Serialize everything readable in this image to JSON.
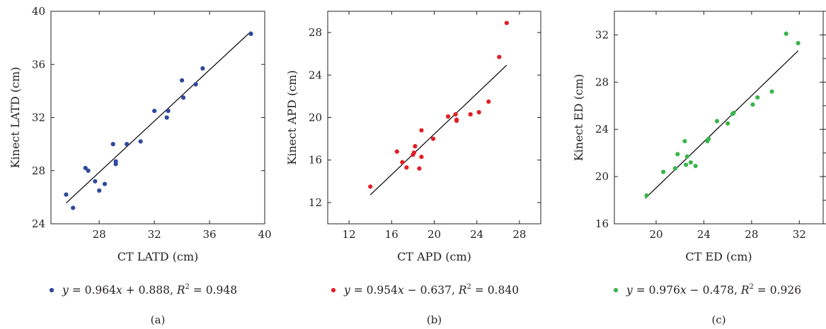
{
  "chart_data": [
    {
      "type": "scatter",
      "panel_label": "(a)",
      "xlabel": "CT LATD (cm)",
      "ylabel": "Kinect LATD (cm)",
      "xlim": [
        24.5,
        40
      ],
      "ylim": [
        24,
        40
      ],
      "xticks": [
        28,
        32,
        36,
        40
      ],
      "yticks": [
        24,
        28,
        32,
        36,
        40
      ],
      "right_ticks": false,
      "color": "#2e4a9b",
      "fit": {
        "slope": 0.964,
        "intercept": 0.888,
        "x_range": [
          25.6,
          39.0
        ]
      },
      "legend": {
        "eq_y": "y",
        "eq_mid": " = 0.964",
        "eq_x": "x",
        "eq_rest": " + 0.888, ",
        "r": "R",
        "sup": "2",
        "eq_end": " = 0.948"
      },
      "points": [
        [
          25.6,
          26.2
        ],
        [
          26.1,
          25.2
        ],
        [
          27.0,
          28.2
        ],
        [
          27.2,
          28.0
        ],
        [
          27.7,
          27.2
        ],
        [
          28.0,
          26.5
        ],
        [
          28.4,
          27.0
        ],
        [
          29.0,
          30.0
        ],
        [
          29.2,
          28.7
        ],
        [
          29.2,
          28.5
        ],
        [
          30.0,
          30.0
        ],
        [
          31.0,
          30.2
        ],
        [
          32.0,
          32.5
        ],
        [
          32.9,
          32.0
        ],
        [
          33.0,
          32.5
        ],
        [
          34.0,
          34.8
        ],
        [
          34.1,
          33.5
        ],
        [
          35.0,
          34.5
        ],
        [
          35.5,
          35.7
        ],
        [
          39.0,
          38.3
        ]
      ]
    },
    {
      "type": "scatter",
      "panel_label": "(b)",
      "xlabel": "CT APD (cm)",
      "ylabel": "Kinect APD (cm)",
      "xlim": [
        10,
        30
      ],
      "ylim": [
        10,
        30
      ],
      "xticks": [
        12,
        16,
        20,
        24,
        28
      ],
      "yticks": [
        12,
        16,
        20,
        24,
        28
      ],
      "right_ticks": false,
      "color": "#e31e24",
      "fit": {
        "slope": 0.954,
        "intercept": -0.637,
        "x_range": [
          14.0,
          26.8
        ]
      },
      "legend": {
        "eq_y": "y",
        "eq_mid": " = 0.954",
        "eq_x": "x",
        "eq_rest": " − 0.637, ",
        "r": "R",
        "sup": "2",
        "eq_end": " = 0.840"
      },
      "points": [
        [
          14.0,
          13.5
        ],
        [
          16.5,
          16.8
        ],
        [
          17.0,
          15.8
        ],
        [
          17.4,
          15.3
        ],
        [
          18.0,
          16.5
        ],
        [
          18.1,
          16.7
        ],
        [
          18.2,
          17.3
        ],
        [
          18.6,
          15.2
        ],
        [
          18.8,
          16.3
        ],
        [
          18.8,
          18.8
        ],
        [
          19.9,
          18.0
        ],
        [
          21.3,
          20.1
        ],
        [
          22.0,
          20.3
        ],
        [
          22.1,
          19.8
        ],
        [
          22.1,
          19.7
        ],
        [
          23.4,
          20.3
        ],
        [
          24.2,
          20.5
        ],
        [
          25.1,
          21.5
        ],
        [
          26.1,
          25.7
        ],
        [
          26.8,
          28.9
        ]
      ]
    },
    {
      "type": "scatter",
      "panel_label": "(c)",
      "xlabel": "CT ED (cm)",
      "ylabel": "Kinect ED (cm)",
      "xlim": [
        16.5,
        34
      ],
      "ylim": [
        16,
        34
      ],
      "xticks": [
        20,
        24,
        28,
        32
      ],
      "yticks": [
        16,
        20,
        24,
        28,
        32
      ],
      "right_ticks": true,
      "color": "#3ab54a",
      "fit": {
        "slope": 0.976,
        "intercept": -0.478,
        "x_range": [
          19.1,
          31.9
        ]
      },
      "legend": {
        "eq_y": "y",
        "eq_mid": " = 0.976",
        "eq_x": "x",
        "eq_rest": " − 0.478, ",
        "r": "R",
        "sup": "2",
        "eq_end": " = 0.926"
      },
      "points": [
        [
          19.2,
          18.4
        ],
        [
          20.6,
          20.4
        ],
        [
          21.6,
          20.7
        ],
        [
          21.8,
          21.9
        ],
        [
          22.4,
          23.0
        ],
        [
          22.5,
          21.0
        ],
        [
          22.6,
          21.7
        ],
        [
          22.9,
          21.2
        ],
        [
          23.3,
          20.9
        ],
        [
          24.3,
          23.0
        ],
        [
          24.4,
          23.2
        ],
        [
          25.1,
          24.7
        ],
        [
          26.0,
          24.5
        ],
        [
          26.4,
          25.3
        ],
        [
          26.5,
          25.4
        ],
        [
          28.1,
          26.1
        ],
        [
          28.5,
          26.7
        ],
        [
          29.7,
          27.2
        ],
        [
          30.9,
          32.1
        ],
        [
          31.9,
          31.3
        ]
      ]
    }
  ]
}
